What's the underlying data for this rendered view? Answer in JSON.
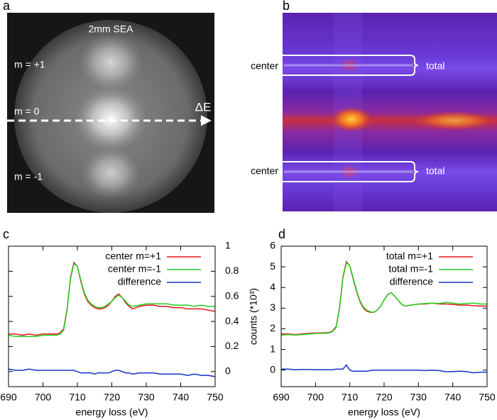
{
  "panels": {
    "a": {
      "label": "a",
      "title": "2mm SEA",
      "orders": [
        "m = +1",
        "m = 0",
        "m = -1"
      ],
      "axis": "ΔE"
    },
    "b": {
      "label": "b",
      "rows": [
        {
          "left": "center",
          "right": "total"
        },
        {
          "left": "center",
          "right": "total"
        }
      ]
    }
  },
  "chart_data": [
    {
      "type": "line",
      "panel_label": "c",
      "xlabel": "energy loss (eV)",
      "yaxis_side": "right",
      "legend": "upper right",
      "x": [
        690,
        692,
        694,
        696,
        698,
        700,
        702,
        704,
        705,
        706,
        707,
        708,
        709,
        710,
        711,
        712,
        713,
        714,
        715,
        716,
        717,
        718,
        719,
        720,
        721,
        722,
        723,
        724,
        725,
        726,
        728,
        730,
        732,
        734,
        736,
        738,
        740,
        742,
        744,
        746,
        748,
        750
      ],
      "xlim": [
        690,
        750
      ],
      "xticks": [
        690,
        700,
        710,
        720,
        730,
        740,
        750
      ],
      "ylim": [
        -0.12,
        1
      ],
      "yticks": [
        0,
        0.2,
        0.4,
        0.6,
        0.8,
        1
      ],
      "series": [
        {
          "name": "center m=+1",
          "color": "#e8141c",
          "values": [
            0.3,
            0.3,
            0.29,
            0.3,
            0.29,
            0.3,
            0.3,
            0.3,
            0.31,
            0.34,
            0.5,
            0.75,
            0.87,
            0.84,
            0.72,
            0.62,
            0.56,
            0.53,
            0.51,
            0.5,
            0.5,
            0.51,
            0.53,
            0.56,
            0.6,
            0.62,
            0.59,
            0.55,
            0.52,
            0.5,
            0.52,
            0.53,
            0.53,
            0.52,
            0.52,
            0.51,
            0.51,
            0.5,
            0.5,
            0.5,
            0.49,
            0.48
          ]
        },
        {
          "name": "center m=-1",
          "color": "#22d11e",
          "values": [
            0.29,
            0.28,
            0.28,
            0.28,
            0.28,
            0.29,
            0.29,
            0.29,
            0.3,
            0.33,
            0.49,
            0.74,
            0.86,
            0.84,
            0.73,
            0.63,
            0.57,
            0.54,
            0.52,
            0.51,
            0.51,
            0.52,
            0.54,
            0.56,
            0.59,
            0.61,
            0.59,
            0.56,
            0.53,
            0.52,
            0.53,
            0.54,
            0.54,
            0.54,
            0.54,
            0.53,
            0.53,
            0.53,
            0.52,
            0.53,
            0.52,
            0.52
          ]
        },
        {
          "name": "difference",
          "color": "#1430c8",
          "values": [
            0.02,
            0.01,
            0.01,
            0.02,
            0.01,
            0.01,
            0.01,
            0.01,
            0.01,
            0.01,
            0.01,
            0.01,
            0.01,
            0.0,
            -0.01,
            -0.01,
            -0.01,
            -0.01,
            -0.02,
            -0.01,
            -0.01,
            -0.01,
            -0.01,
            0.0,
            0.01,
            0.01,
            0.0,
            -0.01,
            -0.01,
            -0.02,
            -0.01,
            -0.01,
            -0.01,
            -0.02,
            -0.02,
            -0.02,
            -0.02,
            -0.03,
            -0.02,
            -0.03,
            -0.03,
            -0.04
          ]
        }
      ]
    },
    {
      "type": "line",
      "panel_label": "d",
      "xlabel": "energy loss (eV)",
      "ylabel": "counts (*10³)",
      "yaxis_side": "left",
      "legend": "upper right",
      "x": [
        690,
        692,
        694,
        696,
        698,
        700,
        702,
        704,
        705,
        706,
        707,
        708,
        709,
        710,
        711,
        712,
        713,
        714,
        715,
        716,
        717,
        718,
        719,
        720,
        721,
        722,
        723,
        724,
        725,
        726,
        728,
        730,
        732,
        734,
        736,
        738,
        740,
        742,
        744,
        746,
        748,
        750
      ],
      "xlim": [
        690,
        750
      ],
      "xticks": [
        690,
        700,
        710,
        720,
        730,
        740,
        750
      ],
      "ylim": [
        -0.8,
        6
      ],
      "yticks": [
        0,
        1,
        2,
        3,
        4,
        5,
        6
      ],
      "series": [
        {
          "name": "total m=+1",
          "color": "#e8141c",
          "values": [
            1.75,
            1.75,
            1.72,
            1.75,
            1.78,
            1.8,
            1.8,
            1.82,
            1.9,
            2.1,
            3.0,
            4.5,
            5.25,
            5.05,
            4.4,
            3.8,
            3.3,
            3.0,
            2.85,
            2.8,
            2.8,
            2.9,
            3.1,
            3.4,
            3.65,
            3.75,
            3.6,
            3.4,
            3.2,
            3.1,
            3.15,
            3.2,
            3.2,
            3.25,
            3.2,
            3.2,
            3.18,
            3.15,
            3.15,
            3.12,
            3.1,
            3.1
          ]
        },
        {
          "name": "total m=-1",
          "color": "#22d11e",
          "values": [
            1.7,
            1.72,
            1.7,
            1.72,
            1.75,
            1.78,
            1.78,
            1.8,
            1.88,
            2.05,
            2.95,
            4.45,
            5.2,
            5.05,
            4.45,
            3.85,
            3.35,
            3.05,
            2.9,
            2.82,
            2.8,
            2.9,
            3.1,
            3.4,
            3.65,
            3.75,
            3.6,
            3.4,
            3.2,
            3.1,
            3.15,
            3.2,
            3.22,
            3.25,
            3.22,
            3.28,
            3.25,
            3.2,
            3.22,
            3.25,
            3.2,
            3.2
          ]
        },
        {
          "name": "difference",
          "color": "#1430c8",
          "values": [
            0.05,
            0.05,
            0.02,
            0.03,
            0.03,
            0.02,
            0.02,
            0.02,
            0.02,
            0.05,
            0.05,
            0.05,
            0.25,
            0.0,
            -0.05,
            -0.05,
            -0.05,
            -0.05,
            -0.05,
            -0.02,
            0.0,
            0.0,
            0.0,
            0.0,
            0.0,
            0.0,
            0.0,
            0.0,
            0.0,
            0.0,
            0.0,
            0.0,
            -0.02,
            0.0,
            -0.02,
            -0.08,
            -0.07,
            -0.05,
            -0.07,
            -0.13,
            -0.1,
            -0.1
          ]
        }
      ]
    }
  ]
}
